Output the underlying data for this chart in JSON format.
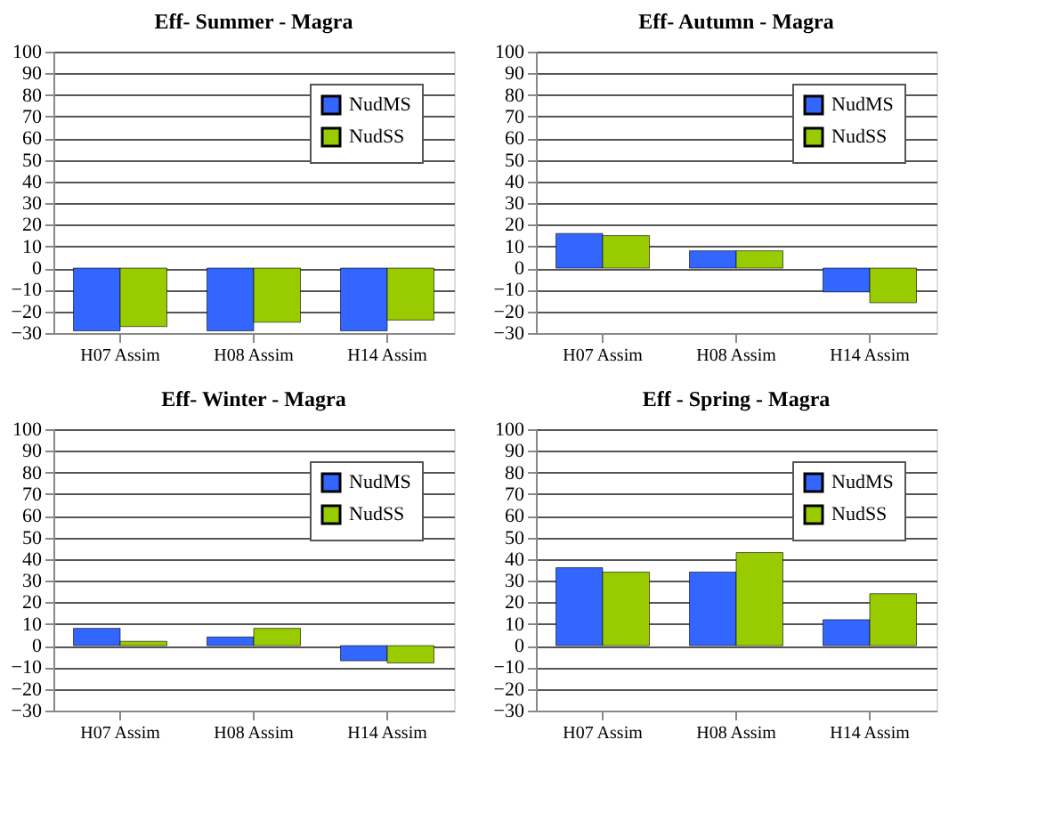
{
  "chart_data": [
    {
      "type": "bar",
      "title": "Eff- Summer - Magra",
      "categories": [
        "H07 Assim",
        "H08 Assim",
        "H14 Assim"
      ],
      "series": [
        {
          "name": "NudMS",
          "color": "#3366ff",
          "values": [
            -29,
            -29,
            -29
          ]
        },
        {
          "name": "NudSS",
          "color": "#99cc00",
          "values": [
            -27,
            -25,
            -24
          ]
        }
      ],
      "ylim": [
        -30,
        100
      ],
      "yticks": [
        -30,
        -20,
        -10,
        0,
        10,
        20,
        30,
        40,
        50,
        60,
        70,
        80,
        90,
        100
      ],
      "grid": "y",
      "legend": "top right"
    },
    {
      "type": "bar",
      "title": "Eff- Autumn - Magra",
      "categories": [
        "H07 Assim",
        "H08 Assim",
        "H14 Assim"
      ],
      "series": [
        {
          "name": "NudMS",
          "color": "#3366ff",
          "values": [
            16,
            8,
            -11
          ]
        },
        {
          "name": "NudSS",
          "color": "#99cc00",
          "values": [
            15,
            8,
            -16
          ]
        }
      ],
      "ylim": [
        -30,
        100
      ],
      "yticks": [
        -30,
        -20,
        -10,
        0,
        10,
        20,
        30,
        40,
        50,
        60,
        70,
        80,
        90,
        100
      ],
      "grid": "y",
      "legend": "top right"
    },
    {
      "type": "bar",
      "title": "Eff- Winter - Magra",
      "categories": [
        "H07 Assim",
        "H08 Assim",
        "H14 Assim"
      ],
      "series": [
        {
          "name": "NudMS",
          "color": "#3366ff",
          "values": [
            8,
            4,
            -7
          ]
        },
        {
          "name": "NudSS",
          "color": "#99cc00",
          "values": [
            2,
            8,
            -8
          ]
        }
      ],
      "ylim": [
        -30,
        100
      ],
      "yticks": [
        -30,
        -20,
        -10,
        0,
        10,
        20,
        30,
        40,
        50,
        60,
        70,
        80,
        90,
        100
      ],
      "grid": "y",
      "legend": "top right"
    },
    {
      "type": "bar",
      "title": "Eff - Spring - Magra",
      "categories": [
        "H07 Assim",
        "H08 Assim",
        "H14 Assim"
      ],
      "series": [
        {
          "name": "NudMS",
          "color": "#3366ff",
          "values": [
            36,
            34,
            12
          ]
        },
        {
          "name": "NudSS",
          "color": "#99cc00",
          "values": [
            34,
            43,
            24
          ]
        }
      ],
      "ylim": [
        -30,
        100
      ],
      "yticks": [
        -30,
        -20,
        -10,
        0,
        10,
        20,
        30,
        40,
        50,
        60,
        70,
        80,
        90,
        100
      ],
      "grid": "y",
      "legend": "top right"
    }
  ]
}
